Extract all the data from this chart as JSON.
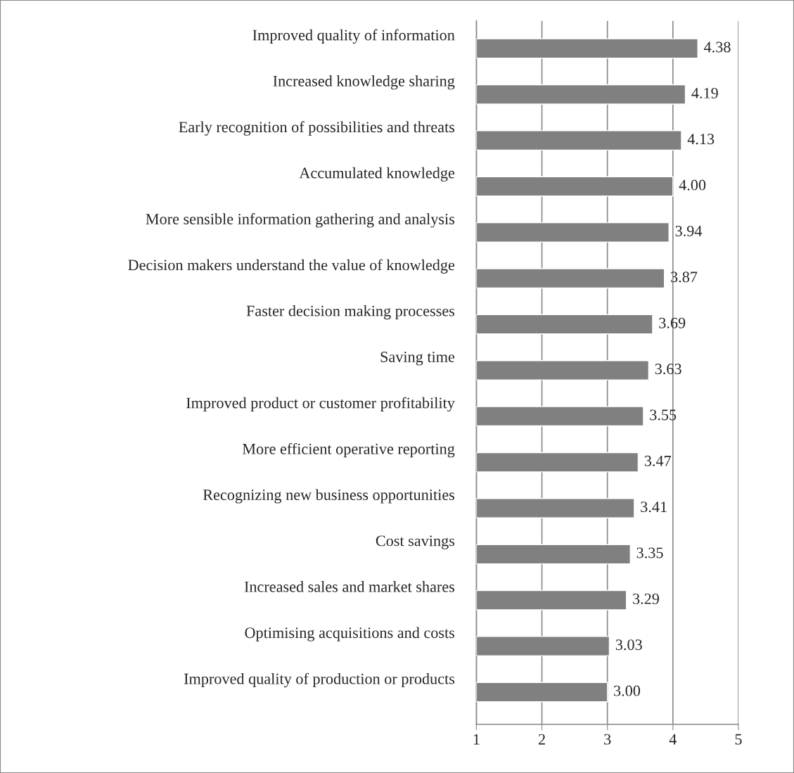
{
  "chart_data": {
    "type": "bar",
    "orientation": "horizontal",
    "categories": [
      "Improved quality of information",
      "Increased knowledge sharing",
      "Early recognition of possibilities and threats",
      "Accumulated knowledge",
      "More sensible information gathering and analysis",
      "Decision makers understand the value of knowledge",
      "Faster decision making processes",
      "Saving time",
      "Improved product or customer profitability",
      "More efficient operative reporting",
      "Recognizing new business opportunities",
      "Cost savings",
      "Increased sales and market shares",
      "Optimising acquisitions and costs",
      "Improved quality of production or products"
    ],
    "values": [
      4.38,
      4.19,
      4.13,
      4.0,
      3.94,
      3.87,
      3.69,
      3.63,
      3.55,
      3.47,
      3.41,
      3.35,
      3.29,
      3.03,
      3.0
    ],
    "value_labels": [
      "4.38",
      "4.19",
      "4.13",
      "4.00",
      "3.94",
      "3.87",
      "3.69",
      "3.63",
      "3.55",
      "3.47",
      "3.41",
      "3.35",
      "3.29",
      "3.03",
      "3.00"
    ],
    "color": "#808080",
    "xlim": [
      1,
      5
    ],
    "xticks": [
      1,
      2,
      3,
      4,
      5
    ],
    "grid": "x"
  }
}
